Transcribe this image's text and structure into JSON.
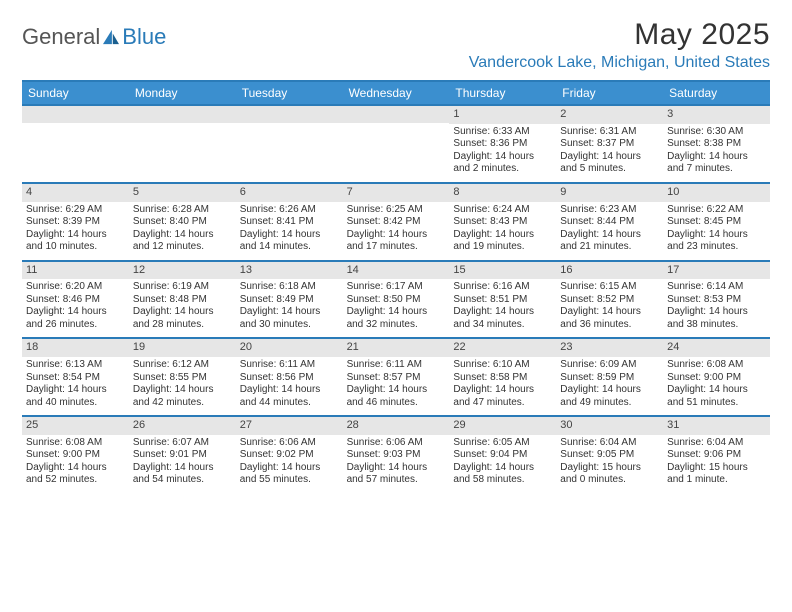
{
  "brand": {
    "part1": "General",
    "part2": "Blue"
  },
  "header": {
    "month_title": "May 2025",
    "location": "Vandercook Lake, Michigan, United States"
  },
  "colors": {
    "accent": "#2a7bb8",
    "header_bg": "#3b8fcf",
    "daynum_bg": "#e6e6e6",
    "text": "#333333",
    "muted": "#555555"
  },
  "days_of_week": [
    "Sunday",
    "Monday",
    "Tuesday",
    "Wednesday",
    "Thursday",
    "Friday",
    "Saturday"
  ],
  "weeks": [
    [
      {
        "blank": true
      },
      {
        "blank": true
      },
      {
        "blank": true
      },
      {
        "blank": true
      },
      {
        "n": "1",
        "sunrise": "Sunrise: 6:33 AM",
        "sunset": "Sunset: 8:36 PM",
        "daylight": "Daylight: 14 hours and 2 minutes."
      },
      {
        "n": "2",
        "sunrise": "Sunrise: 6:31 AM",
        "sunset": "Sunset: 8:37 PM",
        "daylight": "Daylight: 14 hours and 5 minutes."
      },
      {
        "n": "3",
        "sunrise": "Sunrise: 6:30 AM",
        "sunset": "Sunset: 8:38 PM",
        "daylight": "Daylight: 14 hours and 7 minutes."
      }
    ],
    [
      {
        "n": "4",
        "sunrise": "Sunrise: 6:29 AM",
        "sunset": "Sunset: 8:39 PM",
        "daylight": "Daylight: 14 hours and 10 minutes."
      },
      {
        "n": "5",
        "sunrise": "Sunrise: 6:28 AM",
        "sunset": "Sunset: 8:40 PM",
        "daylight": "Daylight: 14 hours and 12 minutes."
      },
      {
        "n": "6",
        "sunrise": "Sunrise: 6:26 AM",
        "sunset": "Sunset: 8:41 PM",
        "daylight": "Daylight: 14 hours and 14 minutes."
      },
      {
        "n": "7",
        "sunrise": "Sunrise: 6:25 AM",
        "sunset": "Sunset: 8:42 PM",
        "daylight": "Daylight: 14 hours and 17 minutes."
      },
      {
        "n": "8",
        "sunrise": "Sunrise: 6:24 AM",
        "sunset": "Sunset: 8:43 PM",
        "daylight": "Daylight: 14 hours and 19 minutes."
      },
      {
        "n": "9",
        "sunrise": "Sunrise: 6:23 AM",
        "sunset": "Sunset: 8:44 PM",
        "daylight": "Daylight: 14 hours and 21 minutes."
      },
      {
        "n": "10",
        "sunrise": "Sunrise: 6:22 AM",
        "sunset": "Sunset: 8:45 PM",
        "daylight": "Daylight: 14 hours and 23 minutes."
      }
    ],
    [
      {
        "n": "11",
        "sunrise": "Sunrise: 6:20 AM",
        "sunset": "Sunset: 8:46 PM",
        "daylight": "Daylight: 14 hours and 26 minutes."
      },
      {
        "n": "12",
        "sunrise": "Sunrise: 6:19 AM",
        "sunset": "Sunset: 8:48 PM",
        "daylight": "Daylight: 14 hours and 28 minutes."
      },
      {
        "n": "13",
        "sunrise": "Sunrise: 6:18 AM",
        "sunset": "Sunset: 8:49 PM",
        "daylight": "Daylight: 14 hours and 30 minutes."
      },
      {
        "n": "14",
        "sunrise": "Sunrise: 6:17 AM",
        "sunset": "Sunset: 8:50 PM",
        "daylight": "Daylight: 14 hours and 32 minutes."
      },
      {
        "n": "15",
        "sunrise": "Sunrise: 6:16 AM",
        "sunset": "Sunset: 8:51 PM",
        "daylight": "Daylight: 14 hours and 34 minutes."
      },
      {
        "n": "16",
        "sunrise": "Sunrise: 6:15 AM",
        "sunset": "Sunset: 8:52 PM",
        "daylight": "Daylight: 14 hours and 36 minutes."
      },
      {
        "n": "17",
        "sunrise": "Sunrise: 6:14 AM",
        "sunset": "Sunset: 8:53 PM",
        "daylight": "Daylight: 14 hours and 38 minutes."
      }
    ],
    [
      {
        "n": "18",
        "sunrise": "Sunrise: 6:13 AM",
        "sunset": "Sunset: 8:54 PM",
        "daylight": "Daylight: 14 hours and 40 minutes."
      },
      {
        "n": "19",
        "sunrise": "Sunrise: 6:12 AM",
        "sunset": "Sunset: 8:55 PM",
        "daylight": "Daylight: 14 hours and 42 minutes."
      },
      {
        "n": "20",
        "sunrise": "Sunrise: 6:11 AM",
        "sunset": "Sunset: 8:56 PM",
        "daylight": "Daylight: 14 hours and 44 minutes."
      },
      {
        "n": "21",
        "sunrise": "Sunrise: 6:11 AM",
        "sunset": "Sunset: 8:57 PM",
        "daylight": "Daylight: 14 hours and 46 minutes."
      },
      {
        "n": "22",
        "sunrise": "Sunrise: 6:10 AM",
        "sunset": "Sunset: 8:58 PM",
        "daylight": "Daylight: 14 hours and 47 minutes."
      },
      {
        "n": "23",
        "sunrise": "Sunrise: 6:09 AM",
        "sunset": "Sunset: 8:59 PM",
        "daylight": "Daylight: 14 hours and 49 minutes."
      },
      {
        "n": "24",
        "sunrise": "Sunrise: 6:08 AM",
        "sunset": "Sunset: 9:00 PM",
        "daylight": "Daylight: 14 hours and 51 minutes."
      }
    ],
    [
      {
        "n": "25",
        "sunrise": "Sunrise: 6:08 AM",
        "sunset": "Sunset: 9:00 PM",
        "daylight": "Daylight: 14 hours and 52 minutes."
      },
      {
        "n": "26",
        "sunrise": "Sunrise: 6:07 AM",
        "sunset": "Sunset: 9:01 PM",
        "daylight": "Daylight: 14 hours and 54 minutes."
      },
      {
        "n": "27",
        "sunrise": "Sunrise: 6:06 AM",
        "sunset": "Sunset: 9:02 PM",
        "daylight": "Daylight: 14 hours and 55 minutes."
      },
      {
        "n": "28",
        "sunrise": "Sunrise: 6:06 AM",
        "sunset": "Sunset: 9:03 PM",
        "daylight": "Daylight: 14 hours and 57 minutes."
      },
      {
        "n": "29",
        "sunrise": "Sunrise: 6:05 AM",
        "sunset": "Sunset: 9:04 PM",
        "daylight": "Daylight: 14 hours and 58 minutes."
      },
      {
        "n": "30",
        "sunrise": "Sunrise: 6:04 AM",
        "sunset": "Sunset: 9:05 PM",
        "daylight": "Daylight: 15 hours and 0 minutes."
      },
      {
        "n": "31",
        "sunrise": "Sunrise: 6:04 AM",
        "sunset": "Sunset: 9:06 PM",
        "daylight": "Daylight: 15 hours and 1 minute."
      }
    ]
  ]
}
